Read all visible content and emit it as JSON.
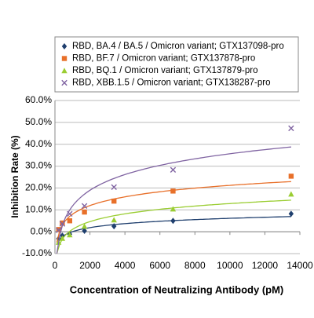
{
  "chart_data": {
    "type": "scatter",
    "xlabel": "Concentration of Neutralizing Antibody (pM)",
    "ylabel": "Inhibition Rate (%)",
    "x": [
      13500,
      6750,
      3375,
      1687.5,
      843.75,
      421.875,
      210.9375
    ],
    "series": [
      {
        "name": "RBD, BA.4 / BA.5 / Omicron variant; GTX137098-pro",
        "color": "#1f3f6e",
        "marker": "diamond",
        "trendline": "logarithmic",
        "values": [
          8.2,
          5.0,
          2.5,
          0.4,
          -1.1,
          -1.8,
          -3.2
        ]
      },
      {
        "name": "RBD, BF.7 / Omicron variant; GTX137878-pro",
        "color": "#e8702a",
        "marker": "square",
        "trendline": "logarithmic",
        "values": [
          25.4,
          18.6,
          14,
          9,
          5,
          4,
          1
        ]
      },
      {
        "name": "RBD, BQ.1 / Omicron variant; GTX137879-pro",
        "color": "#9acd32",
        "marker": "triangle",
        "trendline": "logarithmic",
        "values": [
          17.2,
          10.4,
          5.4,
          2.5,
          -1.4,
          -3,
          -4.8
        ]
      },
      {
        "name": "RBD, XBB.1.5 / Omicron variant; GTX138287-pro",
        "color": "#8064a2",
        "marker": "x",
        "trendline": "logarithmic",
        "values": [
          47.3,
          28.3,
          20.4,
          11.8,
          8.2,
          3.6,
          0.7
        ]
      }
    ],
    "xlim": [
      0,
      14000
    ],
    "xticks": [
      0,
      2000,
      4000,
      6000,
      8000,
      10000,
      12000,
      14000
    ],
    "ylim": [
      -10,
      60
    ],
    "yticks": [
      {
        "value": -10,
        "label": "-10.0%"
      },
      {
        "value": 0,
        "label": "0.0%"
      },
      {
        "value": 10,
        "label": "10.0%"
      },
      {
        "value": 20,
        "label": "20.0%"
      },
      {
        "value": 30,
        "label": "30.0%"
      },
      {
        "value": 40,
        "label": "40.0%"
      },
      {
        "value": 50,
        "label": "50.0%"
      },
      {
        "value": 60,
        "label": "60.0%"
      }
    ],
    "grid": true,
    "legend": "top"
  }
}
